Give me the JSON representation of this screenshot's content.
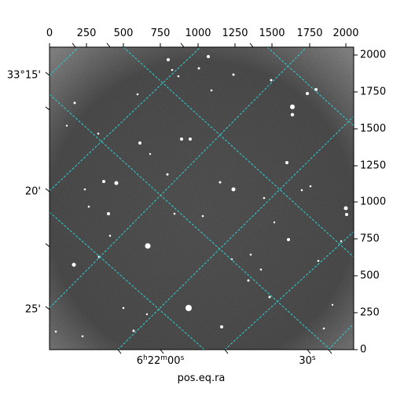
{
  "figure": {
    "xlabel": "pos.eq.ra",
    "pixel_axes": {
      "x_ticks": [
        "0",
        "250",
        "500",
        "750",
        "1000",
        "1250",
        "1500",
        "1750",
        "2000"
      ],
      "y_ticks": [
        "0",
        "250",
        "500",
        "750",
        "1000",
        "1250",
        "1500",
        "1750",
        "2000"
      ]
    },
    "world_axes": {
      "dec_ticks": [
        "33°15'",
        "20'",
        "25'"
      ],
      "ra_ticks": [
        {
          "h": "6",
          "hsup": "h",
          "m": "22",
          "msup": "m",
          "s": "00",
          "ssup": "s"
        },
        {
          "s": "30",
          "ssup": "s"
        }
      ]
    },
    "colors": {
      "grid": "#2fd2d2",
      "sky": "#5a5a5a",
      "frame": "#000000"
    }
  }
}
